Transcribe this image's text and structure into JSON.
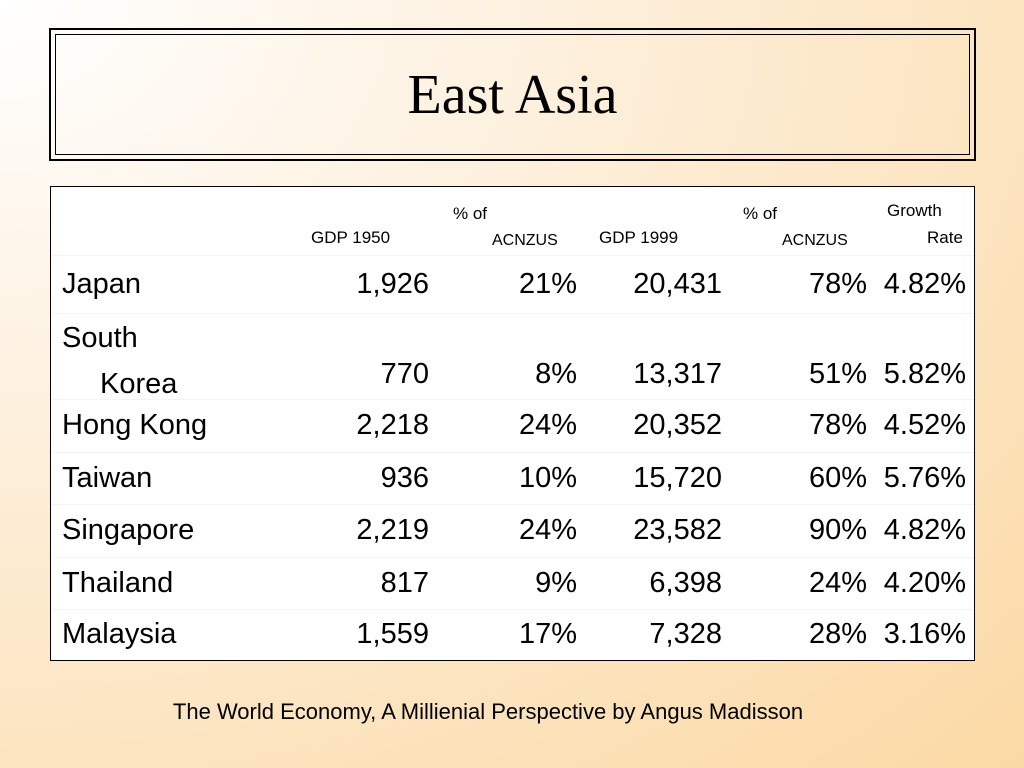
{
  "title": "East Asia",
  "table": {
    "headers": {
      "gdp1950": "GDP 1950",
      "pct1950_line1": "% of",
      "pct1950_line2": "ACNZUS",
      "gdp1999": "GDP 1999",
      "pct1999_line1": "% of",
      "pct1999_line2": "ACNZUS",
      "growth_line1": "Growth",
      "growth_line2": "Rate"
    },
    "rows": [
      {
        "country": "Japan",
        "gdp1950": "1,926",
        "pct1950": "21%",
        "gdp1999": "20,431",
        "pct1999": "78%",
        "growth": "4.82%"
      },
      {
        "country_line1": "South",
        "country_line2": "Korea",
        "gdp1950": "770",
        "pct1950": "8%",
        "gdp1999": "13,317",
        "pct1999": "51%",
        "growth": "5.82%"
      },
      {
        "country": "Hong Kong",
        "gdp1950": "2,218",
        "pct1950": "24%",
        "gdp1999": "20,352",
        "pct1999": "78%",
        "growth": "4.52%"
      },
      {
        "country": "Taiwan",
        "gdp1950": "936",
        "pct1950": "10%",
        "gdp1999": "15,720",
        "pct1999": "60%",
        "growth": "5.76%"
      },
      {
        "country": "Singapore",
        "gdp1950": "2,219",
        "pct1950": "24%",
        "gdp1999": "23,582",
        "pct1999": "90%",
        "growth": "4.82%"
      },
      {
        "country": "Thailand",
        "gdp1950": "817",
        "pct1950": "9%",
        "gdp1999": "6,398",
        "pct1999": "24%",
        "growth": "4.20%"
      },
      {
        "country": "Malaysia",
        "gdp1950": "1,559",
        "pct1950": "17%",
        "gdp1999": "7,328",
        "pct1999": "28%",
        "growth": "3.16%"
      }
    ]
  },
  "citation": "The World Economy, A Millienial Perspective by Angus Madisson",
  "colors": {
    "background_light": "#ffffff",
    "background_warm": "#fbd9a4",
    "text": "#000000"
  }
}
